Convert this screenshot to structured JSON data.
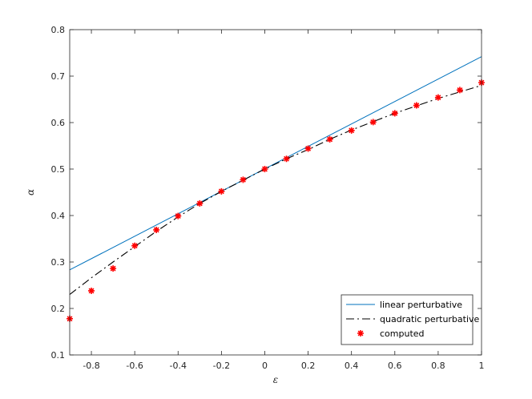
{
  "chart_data": {
    "type": "line",
    "title": "",
    "xlabel": "ε",
    "ylabel": "α",
    "xlim": [
      -0.9,
      1.0
    ],
    "ylim": [
      0.1,
      0.8
    ],
    "xticks": [
      -0.8,
      -0.6,
      -0.4,
      -0.2,
      0,
      0.2,
      0.4,
      0.6,
      0.8,
      1
    ],
    "xtick_labels": [
      "-0.8",
      "-0.6",
      "-0.4",
      "-0.2",
      "0",
      "0.2",
      "0.4",
      "0.6",
      "0.8",
      "1"
    ],
    "yticks": [
      0.1,
      0.2,
      0.3,
      0.4,
      0.5,
      0.6,
      0.7,
      0.8
    ],
    "ytick_labels": [
      "0.1",
      "0.2",
      "0.3",
      "0.4",
      "0.5",
      "0.6",
      "0.7",
      "0.8"
    ],
    "grid": false,
    "legend_position": "bottom-right",
    "series": [
      {
        "name": "linear perturbative",
        "style": "solid",
        "color": "#0072bd",
        "x": [
          -0.9,
          1.0
        ],
        "y": [
          0.283,
          0.742
        ]
      },
      {
        "name": "quadratic perturbative",
        "style": "dashdot",
        "color": "#000000",
        "x": [
          -0.9,
          -0.8,
          -0.7,
          -0.6,
          -0.5,
          -0.4,
          -0.3,
          -0.2,
          -0.1,
          0,
          0.1,
          0.2,
          0.3,
          0.4,
          0.5,
          0.6,
          0.7,
          0.8,
          0.9,
          1.0
        ],
        "y": [
          0.23,
          0.266,
          0.3,
          0.333,
          0.366,
          0.397,
          0.426,
          0.452,
          0.476,
          0.5,
          0.522,
          0.542,
          0.564,
          0.584,
          0.602,
          0.62,
          0.636,
          0.652,
          0.666,
          0.68
        ]
      },
      {
        "name": "computed",
        "style": "markers",
        "color": "#ff0000",
        "x": [
          -0.9,
          -0.8,
          -0.7,
          -0.6,
          -0.5,
          -0.4,
          -0.3,
          -0.2,
          -0.1,
          0,
          0.1,
          0.2,
          0.3,
          0.4,
          0.5,
          0.6,
          0.7,
          0.8,
          0.9,
          1.0
        ],
        "y": [
          0.178,
          0.238,
          0.286,
          0.335,
          0.369,
          0.399,
          0.426,
          0.452,
          0.477,
          0.5,
          0.522,
          0.544,
          0.564,
          0.583,
          0.601,
          0.62,
          0.637,
          0.654,
          0.67,
          0.686
        ]
      }
    ]
  }
}
